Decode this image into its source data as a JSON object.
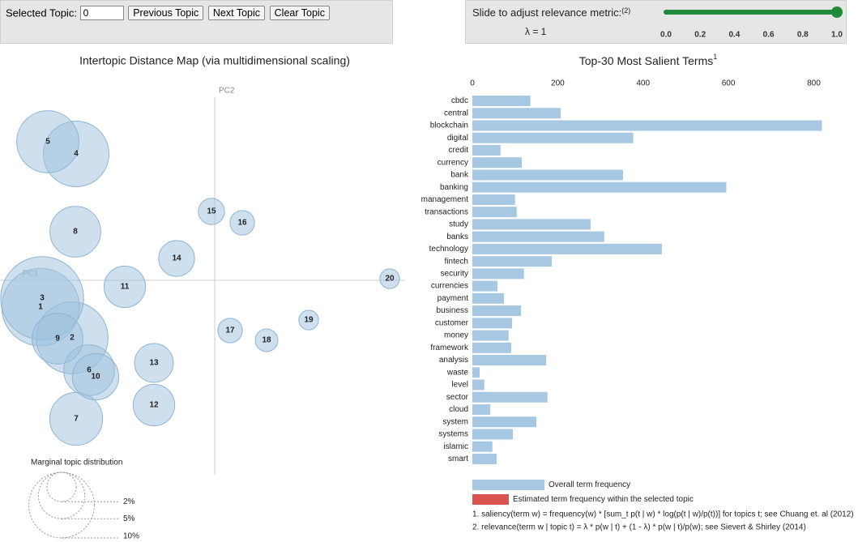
{
  "controls": {
    "selected_topic_label": "Selected Topic:",
    "selected_topic_value": "0",
    "buttons": [
      "Previous Topic",
      "Next Topic",
      "Clear Topic"
    ]
  },
  "slider": {
    "label": "Slide to adjust relevance metric:",
    "label_note": "(2)",
    "lambda_label": "λ = 1",
    "lambda": 1,
    "color": "#1e8a3a",
    "xlim": [
      0,
      1
    ],
    "xticks": [
      {
        "value": 0,
        "label": "0.0"
      },
      {
        "value": 0.2,
        "label": "0.2"
      },
      {
        "value": 0.4,
        "label": "0.4"
      },
      {
        "value": 0.6,
        "label": "0.6"
      },
      {
        "value": 0.8,
        "label": "0.8"
      },
      {
        "value": 1,
        "label": "1.0"
      }
    ]
  },
  "topic_map": {
    "title": "Intertopic Distance Map (via multidimensional scaling)",
    "x_label": "PC1",
    "y_label": "PC2",
    "xlim": [
      -265,
      265
    ],
    "ylim": [
      -240,
      240
    ],
    "color": "#9ec2de",
    "topics": [
      {
        "label": "1",
        "x": -215,
        "y": -33,
        "size": 14
      },
      {
        "label": "2",
        "x": -176,
        "y": -71,
        "size": 12
      },
      {
        "label": "3",
        "x": -213,
        "y": -22,
        "size": 16
      },
      {
        "label": "4",
        "x": -171,
        "y": 156,
        "size": 10
      },
      {
        "label": "5",
        "x": -206,
        "y": 171,
        "size": 9
      },
      {
        "label": "6",
        "x": -155,
        "y": -111,
        "size": 6
      },
      {
        "label": "7",
        "x": -171,
        "y": -171,
        "size": 6.5
      },
      {
        "label": "8",
        "x": -172,
        "y": 60,
        "size": 6
      },
      {
        "label": "9",
        "x": -194,
        "y": -72,
        "size": 6
      },
      {
        "label": "10",
        "x": -147,
        "y": -119,
        "size": 5
      },
      {
        "label": "11",
        "x": -111,
        "y": -8,
        "size": 4
      },
      {
        "label": "12",
        "x": -75,
        "y": -154,
        "size": 4
      },
      {
        "label": "13",
        "x": -75,
        "y": -102,
        "size": 3.5
      },
      {
        "label": "14",
        "x": -47,
        "y": 27,
        "size": 3
      },
      {
        "label": "15",
        "x": -4,
        "y": 85,
        "size": 1.6
      },
      {
        "label": "16",
        "x": 34,
        "y": 71,
        "size": 1.4
      },
      {
        "label": "17",
        "x": 19,
        "y": -62,
        "size": 1.4
      },
      {
        "label": "18",
        "x": 64,
        "y": -74,
        "size": 1.2
      },
      {
        "label": "19",
        "x": 116,
        "y": -49,
        "size": 0.9
      },
      {
        "label": "20",
        "x": 216,
        "y": 2,
        "size": 0.9
      }
    ],
    "size_legend": {
      "title": "Marginal topic distribution",
      "sizes": [
        {
          "value": 2,
          "label": "2%"
        },
        {
          "value": 5,
          "label": "5%"
        },
        {
          "value": 10,
          "label": "10%"
        }
      ]
    }
  },
  "chart_data": {
    "type": "bar",
    "orientation": "horizontal",
    "title": "Top-30 Most Salient Terms",
    "title_note": "1",
    "categories": [
      "cbdc",
      "central",
      "blockchain",
      "digital",
      "credit",
      "currency",
      "bank",
      "banking",
      "management",
      "transactions",
      "study",
      "banks",
      "technology",
      "fintech",
      "security",
      "currencies",
      "payment",
      "business",
      "customer",
      "money",
      "framework",
      "analysis",
      "waste",
      "level",
      "sector",
      "cloud",
      "system",
      "systems",
      "islamic",
      "smart"
    ],
    "series": [
      {
        "name": "Overall term frequency",
        "color": "#a6c8e2",
        "values": [
          136,
          207,
          819,
          377,
          66,
          116,
          353,
          595,
          100,
          104,
          277,
          309,
          444,
          186,
          121,
          59,
          74,
          114,
          93,
          85,
          91,
          173,
          17,
          28,
          176,
          42,
          150,
          95,
          47,
          57
        ]
      }
    ],
    "legend": [
      {
        "name": "Estimated term frequency within the selected topic",
        "color": "#d9534f"
      }
    ],
    "xlim": [
      0,
      820
    ],
    "xticks": [
      0,
      200,
      400,
      600,
      800
    ],
    "footnotes": [
      "1. saliency(term w) = frequency(w) * [sum_t p(t | w) * log(p(t | w)/p(t))] for topics t; see Chuang et. al (2012)",
      "2. relevance(term w | topic t) = λ * p(w | t) + (1 - λ) * p(w | t)/p(w); see Sievert & Shirley (2014)"
    ]
  }
}
